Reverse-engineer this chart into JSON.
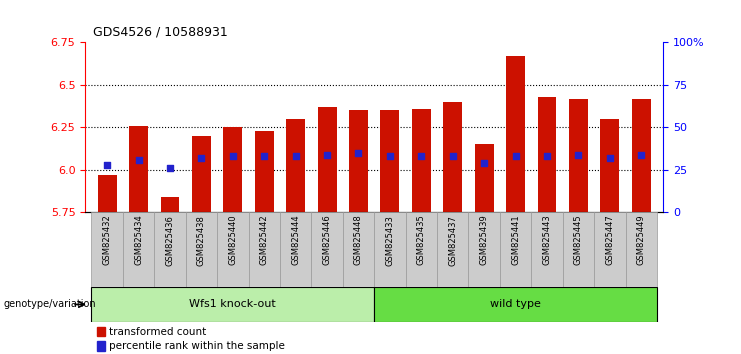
{
  "title": "GDS4526 / 10588931",
  "samples": [
    "GSM825432",
    "GSM825434",
    "GSM825436",
    "GSM825438",
    "GSM825440",
    "GSM825442",
    "GSM825444",
    "GSM825446",
    "GSM825448",
    "GSM825433",
    "GSM825435",
    "GSM825437",
    "GSM825439",
    "GSM825441",
    "GSM825443",
    "GSM825445",
    "GSM825447",
    "GSM825449"
  ],
  "transformed_count": [
    5.97,
    6.26,
    5.84,
    6.2,
    6.25,
    6.23,
    6.3,
    6.37,
    6.35,
    6.35,
    6.36,
    6.4,
    6.15,
    6.67,
    6.43,
    6.42,
    6.3,
    6.42
  ],
  "percentile_rank": [
    6.03,
    6.06,
    6.01,
    6.07,
    6.08,
    6.08,
    6.08,
    6.09,
    6.1,
    6.08,
    6.08,
    6.08,
    6.04,
    6.08,
    6.08,
    6.09,
    6.07,
    6.09
  ],
  "group_labels": [
    "Wfs1 knock-out",
    "wild type"
  ],
  "group_sizes": [
    9,
    9
  ],
  "y_min": 5.75,
  "y_max": 6.75,
  "y_ticks": [
    5.75,
    6.0,
    6.25,
    6.5,
    6.75
  ],
  "right_y_ticks": [
    0,
    25,
    50,
    75,
    100
  ],
  "right_y_labels": [
    "0",
    "25",
    "50",
    "75",
    "100%"
  ],
  "bar_color": "#CC1100",
  "dot_color": "#2222CC",
  "bar_bottom": 5.75,
  "background_color": "#FFFFFF",
  "grid_color": "#000000",
  "grid_vals": [
    6.0,
    6.25,
    6.5
  ],
  "tick_label_bg": "#CCCCCC",
  "group1_color": "#BBEEAA",
  "group2_color": "#66DD44",
  "legend_items": [
    "transformed count",
    "percentile rank within the sample"
  ],
  "legend_colors": [
    "#CC1100",
    "#2222CC"
  ],
  "title_fontsize": 9,
  "axis_fontsize": 8,
  "label_fontsize": 7,
  "genotype_label": "genotype/variation"
}
